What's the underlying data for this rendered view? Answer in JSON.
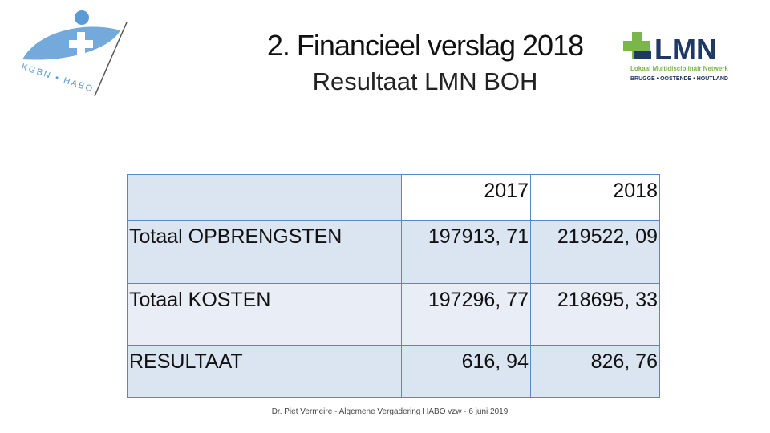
{
  "header": {
    "title": "2. Financieel verslag 2018",
    "subtitle": "Resultaat LMN BOH"
  },
  "logos": {
    "left": {
      "text": "KGBN • HABO",
      "icon": "cross-icon",
      "color": "#5b9bd5"
    },
    "right": {
      "text": "LMN",
      "line1": "Lokaal Multidisciplinair Netwerk",
      "line2": "BRUGGE • OOSTENDE • HOUTLAND",
      "icon": "plus-icon",
      "green": "#7ab648",
      "navy": "#1f3864"
    }
  },
  "table": {
    "headers": [
      "",
      "2017",
      "2018"
    ],
    "rows": [
      {
        "label": "Totaal OPBRENGSTEN",
        "v2017": "197913, 71",
        "v2018": "219522, 09"
      },
      {
        "label": "Totaal KOSTEN",
        "v2017": "197296, 77",
        "v2018": "218695, 33"
      },
      {
        "label": "RESULTAAT",
        "v2017": "616, 94",
        "v2018": "826, 76"
      }
    ]
  },
  "footer": "Dr. Piet Vermeire - Algemene Vergadering HABO vzw - 6 juni 2019"
}
